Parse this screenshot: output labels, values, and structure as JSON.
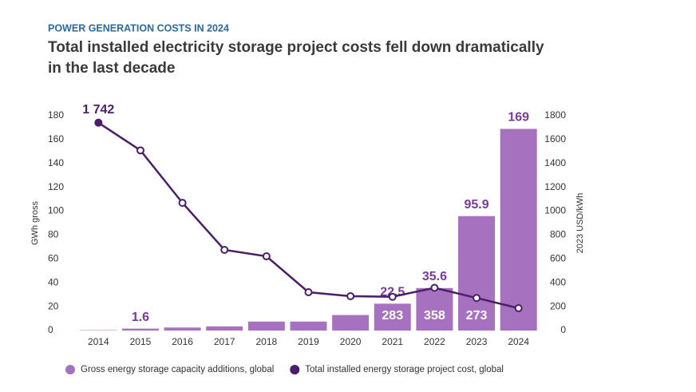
{
  "chart_data": {
    "type": "bar-line",
    "kicker": "POWER GENERATION COSTS IN 2024",
    "title": "Total installed electricity storage project costs fell down dramatically in the last decade",
    "categories": [
      "2014",
      "2015",
      "2016",
      "2017",
      "2018",
      "2019",
      "2020",
      "2021",
      "2022",
      "2023",
      "2024"
    ],
    "series": [
      {
        "name": "Gross energy storage capacity additions, global",
        "type": "bar",
        "color": "#a672c0",
        "values": [
          0.3,
          1.6,
          2.5,
          3.5,
          7.5,
          7.5,
          13,
          22.5,
          35.6,
          95.9,
          169
        ],
        "value_labels": [
          null,
          "1.6",
          null,
          null,
          null,
          null,
          null,
          "22.5",
          "35.6",
          "95.9",
          "169"
        ]
      },
      {
        "name": "Total installed energy storage project cost, global",
        "type": "line",
        "axis": "y2",
        "color": "#4b1e6a",
        "values": [
          1742,
          1510,
          1070,
          676,
          622,
          321,
          288,
          283,
          358,
          273,
          187
        ],
        "value_labels": [
          "1 742",
          null,
          null,
          null,
          null,
          null,
          null,
          "283",
          "358",
          "273",
          null
        ]
      }
    ],
    "ylabel": "GWh gross",
    "y2label": "2023 USD/kWh",
    "ylim": [
      0,
      180
    ],
    "yticks": [
      0,
      20,
      40,
      60,
      80,
      100,
      120,
      140,
      160,
      180
    ],
    "y2lim": [
      0,
      1800
    ],
    "y2ticks": [
      0,
      200,
      400,
      600,
      800,
      1000,
      1200,
      1400,
      1600,
      1800
    ]
  }
}
